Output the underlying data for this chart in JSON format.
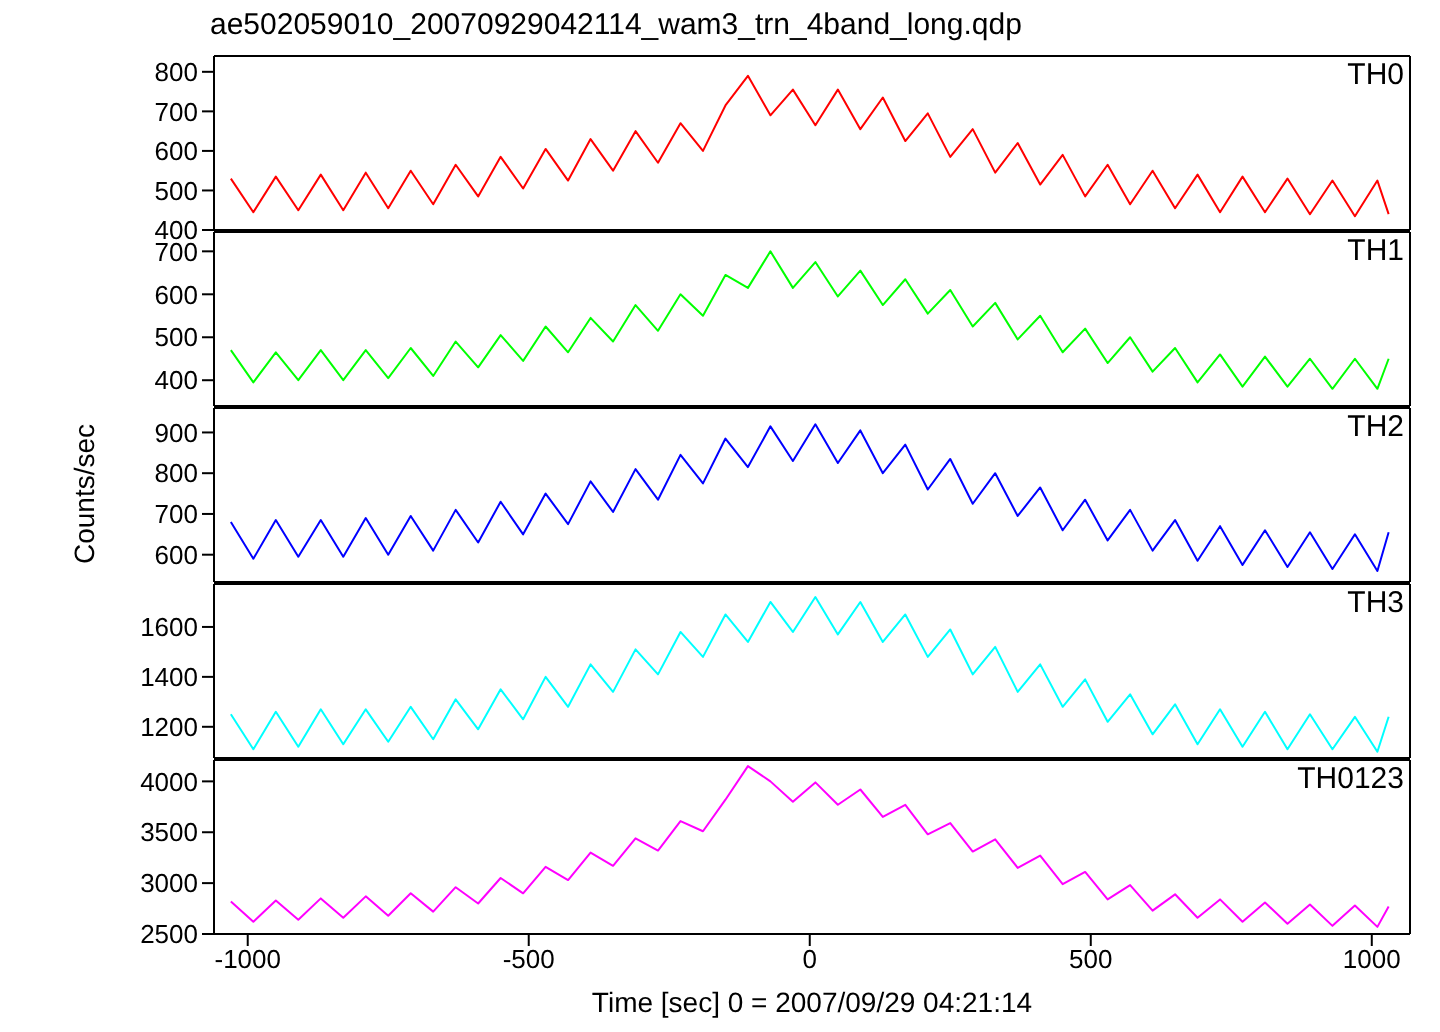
{
  "chart_data": [
    {
      "type": "line",
      "title": "ae502059010_20070929042114_wam3_trn_4band_long.qdp",
      "x": [
        -1030,
        -990,
        -950,
        -910,
        -870,
        -830,
        -790,
        -750,
        -710,
        -670,
        -630,
        -590,
        -550,
        -510,
        -470,
        -430,
        -390,
        -350,
        -310,
        -270,
        -230,
        -190,
        -150,
        -110,
        -70,
        -30,
        10,
        50,
        90,
        130,
        170,
        210,
        250,
        290,
        330,
        370,
        410,
        450,
        490,
        530,
        570,
        610,
        650,
        690,
        730,
        770,
        810,
        850,
        890,
        930,
        970,
        1010,
        1030
      ],
      "xlim": [
        -1060,
        1068
      ],
      "xticks": [
        -1000,
        -500,
        0,
        500,
        1000
      ],
      "ylim": [
        400,
        840
      ],
      "yticks": [
        400,
        500,
        600,
        700,
        800
      ],
      "tick_labels": "y",
      "legend": "top right",
      "series": [
        {
          "name": "TH0",
          "color": "#ff0000",
          "values": [
            530,
            445,
            535,
            450,
            540,
            450,
            545,
            455,
            550,
            465,
            565,
            485,
            585,
            505,
            605,
            525,
            630,
            550,
            650,
            570,
            670,
            600,
            715,
            790,
            690,
            755,
            665,
            755,
            655,
            735,
            625,
            695,
            585,
            655,
            545,
            620,
            515,
            590,
            485,
            565,
            465,
            550,
            455,
            540,
            445,
            535,
            445,
            530,
            440,
            525,
            435,
            525,
            440
          ]
        }
      ]
    },
    {
      "type": "line",
      "x": [
        -1030,
        -990,
        -950,
        -910,
        -870,
        -830,
        -790,
        -750,
        -710,
        -670,
        -630,
        -590,
        -550,
        -510,
        -470,
        -430,
        -390,
        -350,
        -310,
        -270,
        -230,
        -190,
        -150,
        -110,
        -70,
        -30,
        10,
        50,
        90,
        130,
        170,
        210,
        250,
        290,
        330,
        370,
        410,
        450,
        490,
        530,
        570,
        610,
        650,
        690,
        730,
        770,
        810,
        850,
        890,
        930,
        970,
        1010,
        1030
      ],
      "xlim": [
        -1060,
        1068
      ],
      "xticks": [
        -1000,
        -500,
        0,
        500,
        1000
      ],
      "ylim": [
        340,
        745
      ],
      "yticks": [
        400,
        500,
        600,
        700
      ],
      "tick_labels": "y",
      "legend": "top right",
      "series": [
        {
          "name": "TH1",
          "color": "#00ff00",
          "values": [
            470,
            395,
            465,
            400,
            470,
            400,
            470,
            405,
            475,
            410,
            490,
            430,
            505,
            445,
            525,
            465,
            545,
            490,
            575,
            515,
            600,
            550,
            645,
            615,
            700,
            615,
            675,
            595,
            655,
            575,
            635,
            555,
            610,
            525,
            580,
            495,
            550,
            465,
            520,
            440,
            500,
            420,
            475,
            395,
            460,
            385,
            455,
            385,
            450,
            380,
            450,
            380,
            450
          ]
        }
      ]
    },
    {
      "type": "line",
      "ylabel": "Counts/sec",
      "x": [
        -1030,
        -990,
        -950,
        -910,
        -870,
        -830,
        -790,
        -750,
        -710,
        -670,
        -630,
        -590,
        -550,
        -510,
        -470,
        -430,
        -390,
        -350,
        -310,
        -270,
        -230,
        -190,
        -150,
        -110,
        -70,
        -30,
        10,
        50,
        90,
        130,
        170,
        210,
        250,
        290,
        330,
        370,
        410,
        450,
        490,
        530,
        570,
        610,
        650,
        690,
        730,
        770,
        810,
        850,
        890,
        930,
        970,
        1010,
        1030
      ],
      "xlim": [
        -1060,
        1068
      ],
      "xticks": [
        -1000,
        -500,
        0,
        500,
        1000
      ],
      "ylim": [
        533,
        960
      ],
      "yticks": [
        600,
        700,
        800,
        900
      ],
      "tick_labels": "y",
      "legend": "top right",
      "series": [
        {
          "name": "TH2",
          "color": "#0000ff",
          "values": [
            680,
            590,
            685,
            595,
            685,
            595,
            690,
            600,
            695,
            610,
            710,
            630,
            730,
            650,
            750,
            675,
            780,
            705,
            810,
            735,
            845,
            775,
            885,
            815,
            915,
            830,
            920,
            825,
            905,
            800,
            870,
            760,
            835,
            725,
            800,
            695,
            765,
            660,
            735,
            635,
            710,
            610,
            685,
            585,
            670,
            575,
            660,
            570,
            655,
            565,
            650,
            560,
            655
          ]
        }
      ]
    },
    {
      "type": "line",
      "x": [
        -1030,
        -990,
        -950,
        -910,
        -870,
        -830,
        -790,
        -750,
        -710,
        -670,
        -630,
        -590,
        -550,
        -510,
        -470,
        -430,
        -390,
        -350,
        -310,
        -270,
        -230,
        -190,
        -150,
        -110,
        -70,
        -30,
        10,
        50,
        90,
        130,
        170,
        210,
        250,
        290,
        330,
        370,
        410,
        450,
        490,
        530,
        570,
        610,
        650,
        690,
        730,
        770,
        810,
        850,
        890,
        930,
        970,
        1010,
        1030
      ],
      "xlim": [
        -1060,
        1068
      ],
      "xticks": [
        -1000,
        -500,
        0,
        500,
        1000
      ],
      "ylim": [
        1075,
        1772
      ],
      "yticks": [
        1200,
        1400,
        1600
      ],
      "tick_labels": "y",
      "legend": "top right",
      "series": [
        {
          "name": "TH3",
          "color": "#00ffff",
          "values": [
            1250,
            1110,
            1260,
            1120,
            1270,
            1130,
            1270,
            1140,
            1280,
            1150,
            1310,
            1190,
            1350,
            1230,
            1400,
            1280,
            1450,
            1340,
            1510,
            1410,
            1580,
            1480,
            1650,
            1540,
            1700,
            1580,
            1720,
            1570,
            1700,
            1540,
            1650,
            1480,
            1590,
            1410,
            1520,
            1340,
            1450,
            1280,
            1390,
            1220,
            1330,
            1170,
            1290,
            1130,
            1270,
            1120,
            1260,
            1110,
            1250,
            1110,
            1240,
            1100,
            1240
          ]
        }
      ]
    },
    {
      "type": "line",
      "xlabel": "Time [sec] 0 = 2007/09/29 04:21:14",
      "x": [
        -1030,
        -990,
        -950,
        -910,
        -870,
        -830,
        -790,
        -750,
        -710,
        -670,
        -630,
        -590,
        -550,
        -510,
        -470,
        -430,
        -390,
        -350,
        -310,
        -270,
        -230,
        -190,
        -150,
        -110,
        -70,
        -30,
        10,
        50,
        90,
        130,
        170,
        210,
        250,
        290,
        330,
        370,
        410,
        450,
        490,
        530,
        570,
        610,
        650,
        690,
        730,
        770,
        810,
        850,
        890,
        930,
        970,
        1010,
        1030
      ],
      "xlim": [
        -1060,
        1068
      ],
      "xticks": [
        -1000,
        -500,
        0,
        500,
        1000
      ],
      "ylim": [
        2500,
        4210
      ],
      "yticks": [
        2500,
        3000,
        3500,
        4000
      ],
      "legend": "top right",
      "series": [
        {
          "name": "TH0123",
          "color": "#ff00ff",
          "values": [
            2820,
            2620,
            2830,
            2640,
            2850,
            2660,
            2870,
            2680,
            2900,
            2720,
            2960,
            2800,
            3050,
            2900,
            3160,
            3030,
            3300,
            3170,
            3440,
            3320,
            3610,
            3510,
            3820,
            4150,
            4000,
            3800,
            3990,
            3770,
            3920,
            3650,
            3770,
            3480,
            3590,
            3310,
            3430,
            3150,
            3270,
            2990,
            3110,
            2840,
            2980,
            2730,
            2890,
            2660,
            2840,
            2620,
            2810,
            2600,
            2790,
            2580,
            2780,
            2570,
            2770
          ]
        }
      ]
    }
  ]
}
